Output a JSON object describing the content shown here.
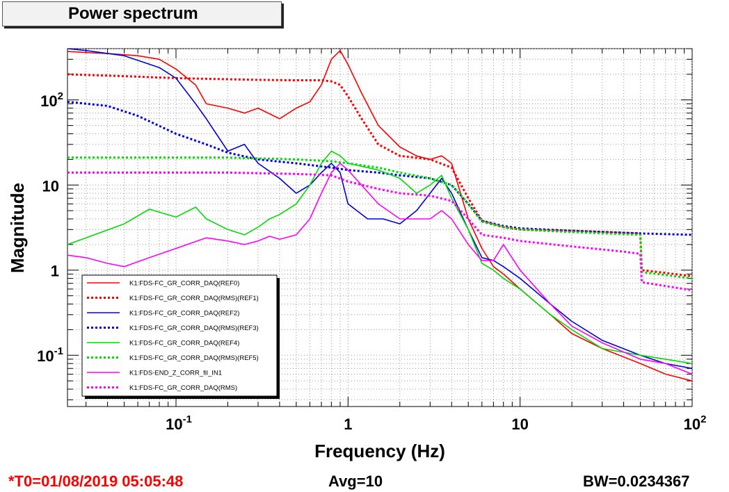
{
  "window": {
    "title": "Power spectrum"
  },
  "footer": {
    "t0": "*T0=01/08/2019 05:05:48",
    "avg": "Avg=10",
    "bw": "BW=0.0234367"
  },
  "chart_data": {
    "type": "line",
    "title": "Power spectrum",
    "xlabel": "Frequency (Hz)",
    "ylabel": "Magnitude",
    "xscale": "log",
    "yscale": "log",
    "xlim": [
      0.0234,
      100
    ],
    "ylim": [
      0.025,
      400
    ],
    "grid": true,
    "legend_position": "bottom-left",
    "x_ticks": [
      {
        "value": 0.1,
        "base": "10",
        "exp": "-1"
      },
      {
        "value": 1,
        "base": "1",
        "exp": ""
      },
      {
        "value": 10,
        "base": "10",
        "exp": ""
      },
      {
        "value": 100,
        "base": "10",
        "exp": "2"
      }
    ],
    "y_ticks": [
      {
        "value": 0.1,
        "base": "10",
        "exp": "-1"
      },
      {
        "value": 1,
        "base": "1",
        "exp": ""
      },
      {
        "value": 10,
        "base": "10",
        "exp": ""
      },
      {
        "value": 100,
        "base": "10",
        "exp": "2"
      }
    ],
    "series": [
      {
        "name": "K1:FDS-FC_GR_CORR_DAQ(REF0)",
        "color": "#ff0000",
        "style": "solid",
        "x": [
          0.0234,
          0.03,
          0.04,
          0.06,
          0.08,
          0.1,
          0.13,
          0.15,
          0.2,
          0.25,
          0.3,
          0.4,
          0.5,
          0.6,
          0.7,
          0.8,
          0.9,
          1.0,
          1.2,
          1.5,
          2,
          2.5,
          3,
          3.5,
          4,
          5,
          6,
          7,
          8,
          10,
          15,
          20,
          30,
          50,
          70,
          100
        ],
        "y": [
          370,
          360,
          350,
          330,
          300,
          230,
          150,
          90,
          80,
          70,
          80,
          60,
          80,
          95,
          150,
          300,
          380,
          260,
          120,
          50,
          28,
          22,
          20,
          22,
          18,
          4,
          1.8,
          1.1,
          0.9,
          0.6,
          0.3,
          0.18,
          0.12,
          0.08,
          0.06,
          0.05
        ]
      },
      {
        "name": "K1:FDS-FC_GR_CORR_DAQ(RMS)(REF1)",
        "color": "#ff0000",
        "style": "dotted",
        "x": [
          0.0234,
          0.05,
          0.1,
          0.2,
          0.3,
          0.5,
          0.7,
          0.8,
          0.9,
          1.0,
          1.2,
          1.5,
          2,
          3,
          4,
          5,
          6,
          8,
          10,
          20,
          50,
          51,
          100
        ],
        "y": [
          200,
          190,
          180,
          175,
          172,
          170,
          170,
          165,
          150,
          110,
          60,
          30,
          22,
          20,
          16,
          7,
          3.8,
          3.2,
          3.0,
          2.9,
          2.7,
          1.0,
          0.85
        ]
      },
      {
        "name": "K1:FDS-FC_GR_CORR_DAQ(REF2)",
        "color": "#0000dd",
        "style": "solid",
        "x": [
          0.0234,
          0.03,
          0.05,
          0.08,
          0.1,
          0.13,
          0.15,
          0.2,
          0.25,
          0.3,
          0.4,
          0.5,
          0.6,
          0.7,
          0.8,
          0.9,
          1.0,
          1.3,
          1.6,
          2,
          2.5,
          3,
          3.5,
          4,
          5,
          6,
          7,
          8,
          10,
          15,
          20,
          30,
          50,
          70,
          100
        ],
        "y": [
          400,
          380,
          330,
          240,
          180,
          90,
          60,
          25,
          30,
          18,
          12,
          8,
          10,
          14,
          18,
          14,
          6,
          4,
          4,
          3.5,
          5,
          8,
          12,
          8,
          3,
          1.4,
          1.3,
          1.1,
          0.8,
          0.4,
          0.25,
          0.15,
          0.1,
          0.08,
          0.07
        ]
      },
      {
        "name": "K1:FDS-FC_GR_CORR_DAQ(RMS)(REF3)",
        "color": "#0000dd",
        "style": "dotted",
        "x": [
          0.0234,
          0.04,
          0.06,
          0.1,
          0.15,
          0.2,
          0.3,
          0.5,
          0.8,
          1.0,
          1.5,
          2,
          3,
          4,
          5,
          6,
          8,
          10,
          20,
          50,
          100
        ],
        "y": [
          95,
          85,
          65,
          40,
          30,
          24,
          20,
          18,
          16,
          15,
          14,
          13,
          12,
          10,
          6,
          3.8,
          3.3,
          3.1,
          2.9,
          2.7,
          2.6
        ]
      },
      {
        "name": "K1:FDS-FC_GR_CORR_DAQ(REF4)",
        "color": "#00dd00",
        "style": "solid",
        "x": [
          0.0234,
          0.03,
          0.05,
          0.07,
          0.1,
          0.13,
          0.15,
          0.2,
          0.25,
          0.3,
          0.35,
          0.4,
          0.5,
          0.6,
          0.7,
          0.8,
          0.9,
          1.0,
          1.5,
          2,
          2.5,
          3,
          3.5,
          4,
          5,
          6,
          7,
          8,
          10,
          15,
          20,
          30,
          50,
          70,
          100
        ],
        "y": [
          2.0,
          2.4,
          3.5,
          5.2,
          4.2,
          5.5,
          4.0,
          3.0,
          2.6,
          3.2,
          4.0,
          4.5,
          6,
          10,
          18,
          25,
          22,
          18,
          15,
          12,
          8,
          10,
          13,
          7,
          3,
          1.2,
          1.0,
          0.8,
          0.6,
          0.3,
          0.2,
          0.12,
          0.1,
          0.09,
          0.08
        ]
      },
      {
        "name": "K1:FDS-FC_GR_CORR_DAQ(RMS)(REF5)",
        "color": "#00dd00",
        "style": "dotted",
        "x": [
          0.0234,
          0.05,
          0.1,
          0.2,
          0.5,
          0.8,
          1.0,
          1.5,
          2,
          3,
          4,
          5,
          6,
          8,
          10,
          20,
          50,
          51,
          100
        ],
        "y": [
          21,
          21,
          21,
          21,
          20,
          19,
          18,
          16,
          14,
          12,
          10,
          6,
          3.7,
          3.2,
          3.0,
          2.8,
          2.6,
          0.95,
          0.8
        ]
      },
      {
        "name": "K1:FDS-END_Z_CORR_fil_IN1",
        "color": "#ff00ff",
        "style": "solid",
        "x": [
          0.0234,
          0.03,
          0.04,
          0.05,
          0.07,
          0.1,
          0.15,
          0.2,
          0.25,
          0.3,
          0.35,
          0.4,
          0.5,
          0.6,
          0.7,
          0.8,
          0.9,
          1.0,
          1.5,
          2,
          2.5,
          3,
          3.5,
          4,
          5,
          6,
          7,
          8,
          10,
          15,
          20,
          30,
          50,
          70,
          100
        ],
        "y": [
          1.5,
          1.4,
          1.2,
          1.1,
          1.4,
          1.8,
          2.4,
          2.2,
          2.0,
          2.2,
          2.5,
          2.3,
          2.6,
          4,
          8,
          14,
          18,
          15,
          6,
          4,
          4,
          4,
          5,
          4,
          2,
          1.3,
          1.3,
          2.0,
          1.0,
          0.4,
          0.22,
          0.14,
          0.09,
          0.08,
          0.06
        ]
      },
      {
        "name": "K1:FDS-FC_GR_CORR_DAQ(RMS)",
        "color": "#ff00ff",
        "style": "dotted",
        "x": [
          0.0234,
          0.05,
          0.1,
          0.2,
          0.5,
          0.8,
          1.0,
          1.5,
          2,
          3,
          4,
          5,
          6,
          8,
          10,
          20,
          40,
          50,
          51,
          100
        ],
        "y": [
          14,
          14,
          14,
          14,
          13.5,
          13,
          11,
          9,
          8,
          7.5,
          6.5,
          4,
          2.6,
          2.4,
          2.2,
          1.9,
          1.65,
          1.55,
          0.72,
          0.58
        ]
      }
    ]
  }
}
